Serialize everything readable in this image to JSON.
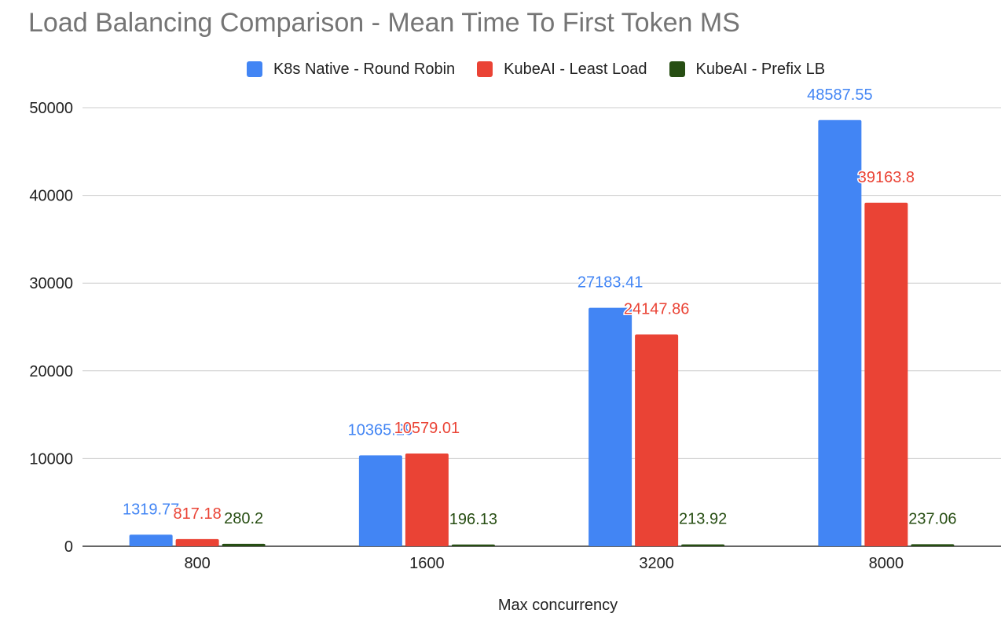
{
  "chart_data": {
    "type": "bar",
    "title": "Load Balancing Comparison - Mean Time To First Token MS",
    "xlabel": "Max concurrency",
    "ylabel": "",
    "categories": [
      "800",
      "1600",
      "3200",
      "8000"
    ],
    "ylim": [
      0,
      50000
    ],
    "yticks": [
      0,
      10000,
      20000,
      30000,
      40000,
      50000
    ],
    "grid": true,
    "legend_position": "top",
    "series": [
      {
        "name": "K8s Native - Round Robin",
        "color": "#4285f4",
        "values": [
          1319.77,
          10365.29,
          27183.41,
          48587.55
        ],
        "labels": [
          "1319.77",
          "10365.29",
          "27183.41",
          "48587.55"
        ]
      },
      {
        "name": "KubeAI - Least Load",
        "color": "#ea4335",
        "values": [
          817.18,
          10579.01,
          24147.86,
          39163.8
        ],
        "labels": [
          "817.18",
          "10579.01",
          "24147.86",
          "39163.8"
        ]
      },
      {
        "name": "KubeAI - Prefix LB",
        "color": "#274e13",
        "values": [
          280.2,
          196.13,
          213.92,
          237.06
        ],
        "labels": [
          "280.2",
          "196.13",
          "213.92",
          "237.06"
        ]
      }
    ]
  }
}
